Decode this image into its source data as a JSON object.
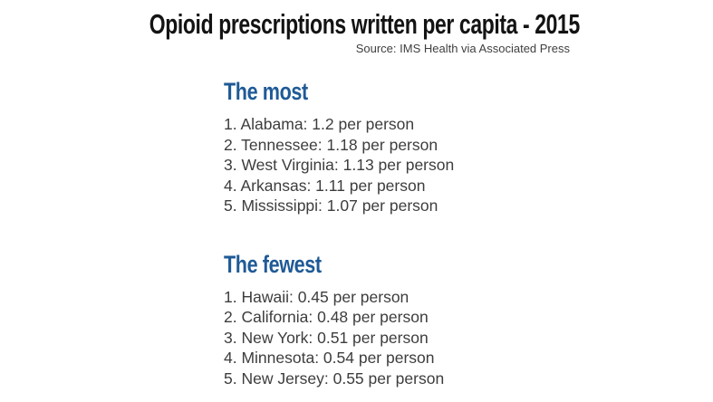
{
  "page": {
    "title": "Opioid prescriptions written per capita - 2015",
    "source": "Source: IMS Health via Associated Press"
  },
  "colors": {
    "background": "#ffffff",
    "title_text": "#131313",
    "heading_blue": "#1f5a96",
    "body_text": "#3d3d3d",
    "source_text": "#3f3f3f"
  },
  "sections": [
    {
      "heading": "The most",
      "items": [
        "1. Alabama: 1.2 per person",
        "2. Tennessee: 1.18 per person",
        "3. West Virginia: 1.13 per person",
        "4. Arkansas: 1.11 per person",
        "5. Mississippi: 1.07 per person"
      ]
    },
    {
      "heading": "The fewest",
      "items": [
        "1. Hawaii: 0.45 per person",
        "2. California: 0.48 per person",
        "3. New York: 0.51 per person",
        "4. Minnesota: 0.54 per person",
        "5. New Jersey: 0.55 per person"
      ]
    }
  ],
  "chart_data": {
    "type": "table",
    "title": "Opioid prescriptions written per capita - 2015",
    "source": "IMS Health via Associated Press",
    "year": 2015,
    "unit": "prescriptions per person",
    "groups": [
      {
        "label": "The most",
        "categories": [
          "Alabama",
          "Tennessee",
          "West Virginia",
          "Arkansas",
          "Mississippi"
        ],
        "values": [
          1.2,
          1.18,
          1.13,
          1.11,
          1.07
        ]
      },
      {
        "label": "The fewest",
        "categories": [
          "Hawaii",
          "California",
          "New York",
          "Minnesota",
          "New Jersey"
        ],
        "values": [
          0.45,
          0.48,
          0.51,
          0.54,
          0.55
        ]
      }
    ]
  }
}
